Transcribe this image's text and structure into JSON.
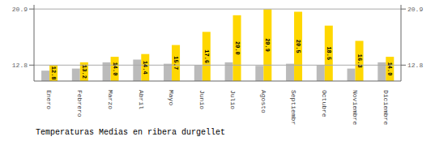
{
  "chart_data": {
    "type": "bar",
    "title": "Temperaturas Medias en ribera durgellet",
    "categories": [
      "Enero",
      "Febrero",
      "Marzo",
      "Abril",
      "Mayo",
      "Junio",
      "Julio",
      "Agosto",
      "Septiembre",
      "Octubre",
      "Noviembre",
      "Diciembre"
    ],
    "series": [
      {
        "color": "#BBBBBB",
        "values": [
          12.0,
          12.3,
          13.2,
          13.6,
          13.0,
          12.8,
          13.2,
          12.7,
          13.0,
          12.8,
          12.3,
          13.2
        ]
      },
      {
        "color": "#FFD700",
        "values": [
          12.8,
          13.2,
          14.0,
          14.4,
          15.7,
          17.6,
          20.0,
          20.9,
          20.5,
          18.5,
          16.3,
          14.0
        ],
        "data_labels": true,
        "value_labels": [
          "12.8",
          "13.2",
          "14.0",
          "14.4",
          "15.7",
          "17.6",
          "20.0",
          "20.9",
          "20.5",
          "18.5",
          "16.3",
          "14.0"
        ]
      }
    ],
    "ylim": [
      10.5,
      21.5
    ],
    "yticks": [
      12.8,
      20.9
    ],
    "y2lim": [
      10.5,
      21.5
    ],
    "y2ticks": [
      12.8,
      20.9
    ],
    "hlines": [
      20.9,
      12.8
    ]
  }
}
